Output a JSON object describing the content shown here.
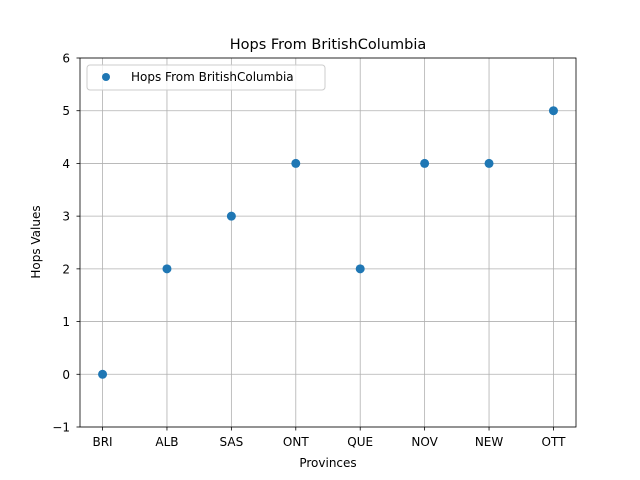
{
  "chart_data": {
    "type": "scatter",
    "title": "Hops From BritishColumbia",
    "xlabel": "Provinces",
    "ylabel": "Hops Values",
    "categories": [
      "BRI",
      "ALB",
      "SAS",
      "ONT",
      "QUE",
      "NOV",
      "NEW",
      "OTT"
    ],
    "series": [
      {
        "name": "Hops From BritishColumbia",
        "values": [
          0,
          2,
          3,
          4,
          2,
          4,
          4,
          5
        ],
        "color": "#1f77b4"
      }
    ],
    "ylim": [
      -1,
      6
    ],
    "yticks": [
      -1,
      0,
      1,
      2,
      3,
      4,
      5,
      6
    ],
    "grid": true,
    "legend": "top-left"
  }
}
